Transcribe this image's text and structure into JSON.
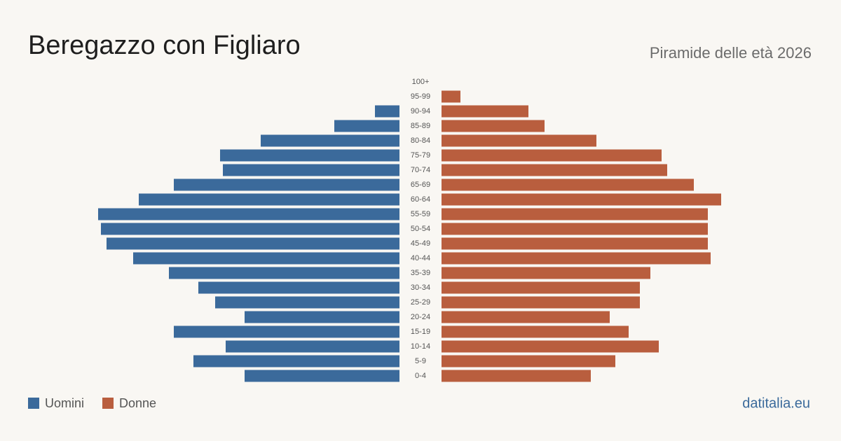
{
  "chart_data": {
    "type": "pyramid",
    "title": "Beregazzo con Figliaro",
    "subtitle": "Piramide delle età 2026",
    "source": "datitalia.eu",
    "categories": [
      "100+",
      "95-99",
      "90-94",
      "85-89",
      "80-84",
      "75-79",
      "70-74",
      "65-69",
      "60-64",
      "55-59",
      "50-54",
      "45-49",
      "40-44",
      "35-39",
      "30-34",
      "25-29",
      "20-24",
      "15-19",
      "10-14",
      "5-9",
      "0-4"
    ],
    "series": [
      {
        "name": "Uomini",
        "color": "#3b6a9b",
        "values": [
          0,
          0,
          35,
          93,
          198,
          256,
          252,
          322,
          372,
          430,
          426,
          418,
          380,
          329,
          287,
          263,
          221,
          322,
          248,
          294,
          221
        ]
      },
      {
        "name": "Donne",
        "color": "#b95e3e",
        "values": [
          0,
          27,
          124,
          147,
          221,
          314,
          322,
          360,
          399,
          380,
          380,
          380,
          384,
          298,
          283,
          283,
          240,
          267,
          310,
          248,
          213
        ]
      }
    ]
  }
}
